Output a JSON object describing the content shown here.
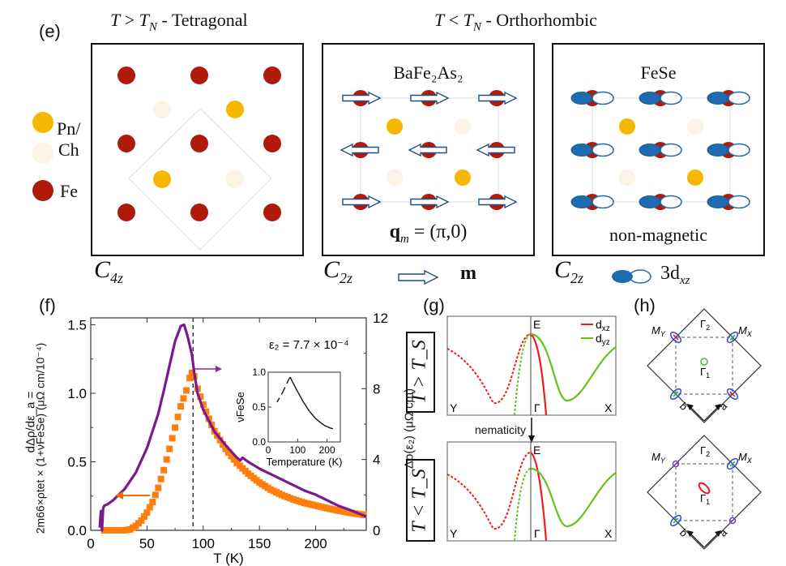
{
  "panels": {
    "e": {
      "label": "(e)",
      "title_left": "T > T_N - Tetragonal",
      "title_left_parts": {
        "T": "T",
        "gt": " > ",
        "TN": "T",
        "sub": "N",
        "rest": " - Tetragonal"
      },
      "title_right_parts": {
        "T": "T",
        "lt": " < ",
        "TN": "T",
        "sub": "N",
        "rest": " - Orthorhombic"
      },
      "legend": [
        {
          "label": "Pn/",
          "color": "#f5b800"
        },
        {
          "label": "Ch",
          "color": "#fbf3e4"
        },
        {
          "label": "Fe",
          "color": "#b01a0c"
        }
      ],
      "box2_title": "BaFe₂As₂",
      "box2_bottom": "q_m = (π,0)",
      "box2_bottom_parts": {
        "q": "q",
        "sub": "m",
        "rest": " = (π,0)"
      },
      "box3_title": "FeSe",
      "box3_bottom": "non-magnetic",
      "captions": [
        {
          "C": "C",
          "sub": "4z"
        },
        {
          "C": "C",
          "sub": "2z",
          "symbol_label": "m"
        },
        {
          "C": "C",
          "sub": "2z",
          "symbol_label": "3d",
          "symbol_sub": "xz"
        }
      ],
      "colors": {
        "fe": "#b01a0c",
        "pn": "#f5b800",
        "ch": "#fbf3e4",
        "orbital": "#1f6bb0",
        "arrow": "#1f4f8a"
      }
    },
    "f": {
      "label": "(f)",
      "ylabel_left_line1": "dΔρ/dε_a =",
      "ylabel_left_line2": "2m66×ρtet × (1+νFeSe) (μΩ cm/10⁻⁴)",
      "ylabel_right": "Δρ(ε₂) (μΩ cm)",
      "xlabel": "T (K)",
      "annotation": "ε₂ = 7.7 × 10⁻⁴",
      "inset": {
        "ylabel": "νFeSe",
        "xlabel": "Temperature (K)"
      }
    },
    "g": {
      "label": "(g)",
      "top_condition": "T > T_S",
      "bottom_condition": "T < T_S",
      "arrow_label": "nematicity",
      "axis_labels": {
        "E": "E",
        "Y": "Y",
        "Gamma": "Γ",
        "X": "X"
      },
      "legend": [
        {
          "label": "d_xz",
          "base": "d",
          "sub": "xz",
          "color": "#ee1c1c"
        },
        {
          "label": "d_yz",
          "base": "d",
          "sub": "yz",
          "color": "#66c21a"
        }
      ]
    },
    "h": {
      "label": "(h)",
      "points": {
        "MY": "M",
        "MY_sub": "Y",
        "MX": "M",
        "MX_sub": "X",
        "G1": "Γ",
        "G1_sub": "1",
        "G2": "Γ",
        "G2_sub": "2"
      },
      "axes": {
        "a": "a",
        "b": "b"
      }
    }
  },
  "chart_data": [
    {
      "type": "line",
      "title": "",
      "xlabel": "T (K)",
      "ylabel": "dΔρ/dε_a = 2m66×ρtet × (1+νFeSe) (μΩ cm/10⁻⁴)",
      "ylabel_right": "Δρ(ε₂) (μΩ cm)",
      "xlim": [
        0,
        245
      ],
      "ylim": [
        0,
        1.55
      ],
      "ylim_right": [
        0,
        12
      ],
      "xticks": [
        0,
        50,
        100,
        150,
        200
      ],
      "yticks": [
        0.0,
        0.5,
        1.0,
        1.5
      ],
      "yticks_right": [
        0,
        4,
        8,
        12
      ],
      "vline_x": 91,
      "annotation": "ε₂ = 7.7 × 10⁻⁴",
      "series": [
        {
          "name": "dΔρ/dε_a (left axis)",
          "color": "#7a1a8c",
          "axis": "left",
          "x": [
            8,
            9,
            10,
            11,
            12,
            15,
            20,
            30,
            40,
            50,
            60,
            65,
            70,
            75,
            80,
            83,
            86,
            88,
            90,
            92,
            95,
            100,
            105,
            110,
            120,
            130,
            133,
            135,
            140,
            150,
            160,
            170,
            180,
            190,
            200,
            210,
            220,
            230,
            245
          ],
          "y": [
            0.02,
            0.14,
            0.0,
            0.16,
            0.18,
            0.19,
            0.22,
            0.3,
            0.42,
            0.6,
            0.85,
            1.02,
            1.2,
            1.38,
            1.49,
            1.5,
            1.42,
            1.35,
            1.28,
            1.15,
            1.0,
            0.88,
            0.8,
            0.72,
            0.62,
            0.53,
            0.51,
            0.53,
            0.5,
            0.45,
            0.41,
            0.37,
            0.33,
            0.29,
            0.26,
            0.22,
            0.18,
            0.15,
            0.1
          ]
        },
        {
          "name": "Δρ(ε₂) (right axis)",
          "color": "#ff7f0e",
          "axis": "right",
          "marker": "square",
          "x": [
            12,
            30,
            35,
            40,
            45,
            50,
            55,
            60,
            65,
            70,
            75,
            80,
            85,
            88,
            90,
            92,
            95,
            100,
            105,
            110,
            120,
            130,
            140,
            150,
            160,
            170,
            180,
            190,
            200,
            210,
            220,
            230,
            245
          ],
          "y": [
            0.0,
            0.0,
            0.05,
            0.25,
            0.55,
            1.0,
            1.6,
            2.4,
            3.4,
            4.6,
            5.8,
            7.0,
            7.9,
            8.6,
            8.9,
            8.7,
            8.0,
            7.1,
            6.3,
            5.6,
            4.6,
            3.8,
            3.2,
            2.7,
            2.3,
            2.0,
            1.75,
            1.55,
            1.4,
            1.25,
            1.12,
            1.0,
            0.85
          ]
        }
      ],
      "inset": {
        "type": "line",
        "xlabel": "Temperature (K)",
        "ylabel": "νFeSe",
        "xlim": [
          0,
          245
        ],
        "ylim": [
          0,
          1.0
        ],
        "xticks": [
          0,
          100,
          200
        ],
        "yticks": [
          0.0,
          0.5,
          1.0
        ],
        "x": [
          30,
          50,
          70,
          75,
          80,
          100,
          120,
          140,
          160,
          180,
          190,
          200,
          210,
          220
        ],
        "y": [
          0.57,
          0.72,
          0.9,
          0.93,
          0.88,
          0.72,
          0.57,
          0.44,
          0.34,
          0.27,
          0.24,
          0.22,
          0.2,
          0.19
        ],
        "dashed_ranges": [
          [
            30,
            70
          ],
          [
            180,
            220
          ]
        ]
      }
    },
    {
      "type": "line",
      "title": "T > T_S",
      "xlabel_ticks": [
        "Y",
        "Γ",
        "X"
      ],
      "ylabel": "E",
      "series": [
        {
          "name": "d_xz",
          "color": "#ee1c1c",
          "segments": "dashed on Γ-Y, solid on Γ-X"
        },
        {
          "name": "d_yz",
          "color": "#66c21a",
          "segments": "dashed on Γ-Y, solid on Γ-X"
        }
      ],
      "degenerate_at_gamma": true
    },
    {
      "type": "line",
      "title": "T < T_S",
      "xlabel_ticks": [
        "Y",
        "Γ",
        "X"
      ],
      "ylabel": "E",
      "series": [
        {
          "name": "d_xz",
          "color": "#ee1c1c"
        },
        {
          "name": "d_yz",
          "color": "#66c21a"
        }
      ],
      "degenerate_at_gamma": false
    }
  ]
}
